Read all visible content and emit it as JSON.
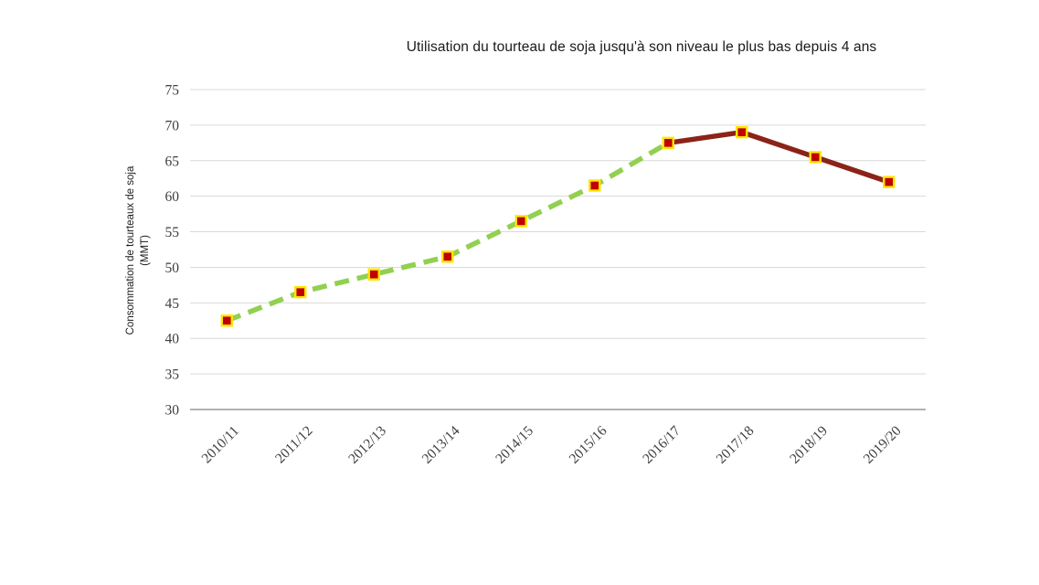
{
  "page": {
    "title": "Utilisation du tourteau de soja jusqu'à son niveau le plus bas depuis 4 ans"
  },
  "axis": {
    "y_title_line1": "Consommation de tourteaux de soja",
    "y_title_line2": "(MMT)"
  },
  "chart_data": {
    "type": "line",
    "title": "Utilisation du tourteau de soja jusqu'à son niveau le plus bas depuis 4 ans",
    "xlabel": "",
    "ylabel": "Consommation de tourteaux de soja (MMT)",
    "categories": [
      "2010/11",
      "2011/12",
      "2012/13",
      "2013/14",
      "2014/15",
      "2015/16",
      "2016/17",
      "2017/18",
      "2018/19",
      "2019/20"
    ],
    "values": [
      42.5,
      46.5,
      49,
      51.5,
      56.5,
      61.5,
      67.5,
      69,
      65.5,
      62
    ],
    "ylim": [
      30,
      75
    ],
    "ytick_step": 5,
    "y_ticks": [
      30,
      35,
      40,
      45,
      50,
      55,
      60,
      65,
      70,
      75
    ],
    "grid": true,
    "legend": "none",
    "segments": [
      {
        "range": [
          0,
          6
        ],
        "line_style": "dashed",
        "color": "#92d050"
      },
      {
        "range": [
          6,
          9
        ],
        "line_style": "solid",
        "color": "#8b2318"
      }
    ],
    "marker": {
      "shape": "square",
      "fill": "#c00000",
      "border": "#ffe600"
    },
    "colors": {
      "grid": "#d9d9d9",
      "axis": "#a6a6a6",
      "background": "#ffffff"
    }
  }
}
